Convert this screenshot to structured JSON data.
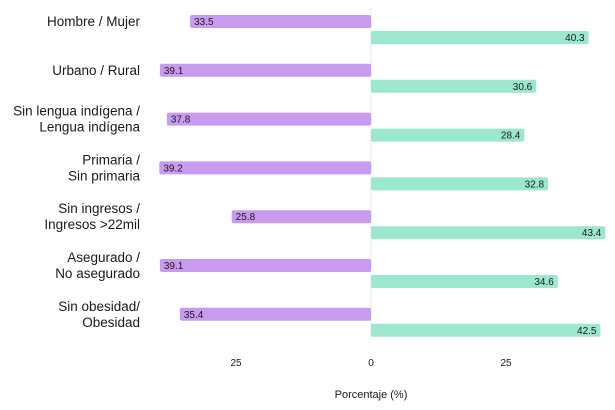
{
  "chart_data": {
    "type": "bar",
    "orientation": "horizontal-diverging",
    "categories": [
      [
        "Hombre / Mujer"
      ],
      [
        "Urbano / Rural"
      ],
      [
        "Sin lengua indígena /",
        "Lengua indígena"
      ],
      [
        "Primaria /",
        "Sin primaria"
      ],
      [
        "Sin ingresos  /",
        "Ingresos >22mil"
      ],
      [
        "Asegurado /",
        "No asegurado"
      ],
      [
        "Sin obesidad/",
        "Obesidad"
      ]
    ],
    "series": [
      {
        "color": "#c89af0",
        "direction": "left",
        "values": [
          33.5,
          39.1,
          37.8,
          39.2,
          25.8,
          39.1,
          35.4
        ]
      },
      {
        "color": "#9be8cf",
        "direction": "right",
        "values": [
          40.3,
          30.6,
          28.4,
          32.8,
          43.4,
          34.6,
          42.5
        ]
      }
    ],
    "value_labels": {
      "left": [
        "33.5",
        "39.1",
        "37.8",
        "39.2",
        "25.8",
        "39.1",
        "35.4"
      ],
      "right": [
        "40.3",
        "30.6",
        "28.4",
        "32.8",
        "43.4",
        "34.6",
        "42.5"
      ]
    },
    "xticks": [
      {
        "value": -25,
        "label": "25"
      },
      {
        "value": 0,
        "label": "0"
      },
      {
        "value": 25,
        "label": "25"
      }
    ],
    "xlim": [
      -40,
      43.5
    ],
    "xlabel": "Porcentaje (%)",
    "title": "",
    "grid": false,
    "legend": "none"
  }
}
